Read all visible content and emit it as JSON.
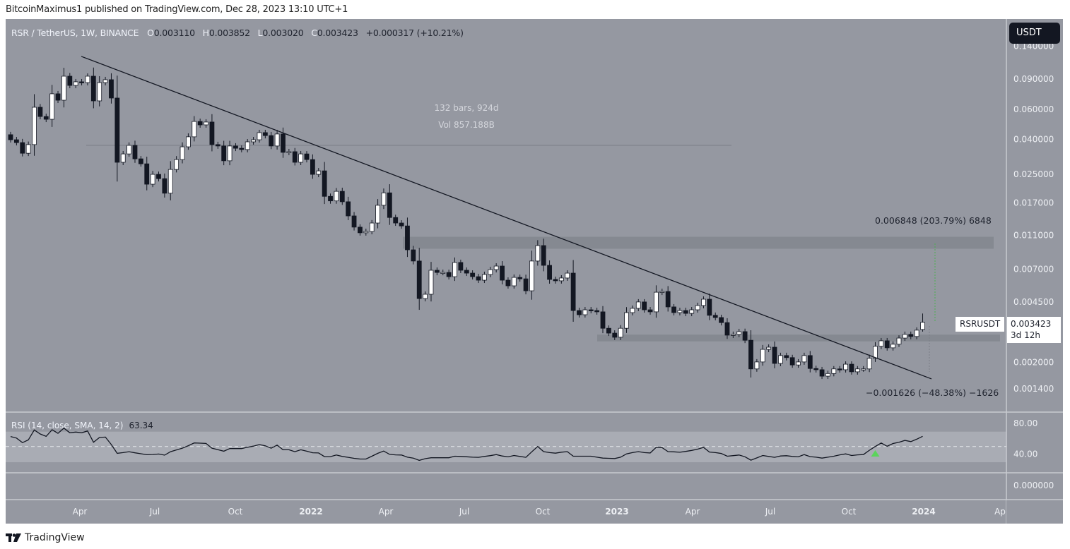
{
  "publisher": "BitcoinMaximus1 published on TradingView.com, Dec 28, 2023 13:10 UTC+1",
  "legend": {
    "symbol": "RSR / TetherUS, 1W, BINANCE",
    "o_label": "O",
    "o": "0.003110",
    "h_label": "H",
    "h": "0.003852",
    "l_label": "L",
    "l": "0.003020",
    "c_label": "C",
    "c": "0.003423",
    "change": "+0.000317 (+10.21%)"
  },
  "currency_button": "USDT",
  "price_axis": [
    "0.140000",
    "0.090000",
    "0.060000",
    "0.040000",
    "0.025000",
    "0.017000",
    "0.011000",
    "0.007000",
    "0.004500",
    "0.002000",
    "0.001400"
  ],
  "rsi_axis": [
    "80.00",
    "40.00"
  ],
  "lower_pane_axis": "0.000000",
  "time_axis": [
    {
      "label": "Apr",
      "year": false
    },
    {
      "label": "Jul",
      "year": false
    },
    {
      "label": "Oct",
      "year": false
    },
    {
      "label": "2022",
      "year": true
    },
    {
      "label": "Apr",
      "year": false
    },
    {
      "label": "Jul",
      "year": false
    },
    {
      "label": "Oct",
      "year": false
    },
    {
      "label": "2023",
      "year": true
    },
    {
      "label": "Apr",
      "year": false
    },
    {
      "label": "Jul",
      "year": false
    },
    {
      "label": "Oct",
      "year": false
    },
    {
      "label": "2024",
      "year": true
    },
    {
      "label": "Ap",
      "year": false
    }
  ],
  "measure": {
    "bars": "132 bars, 924d",
    "volume": "Vol 857.188B"
  },
  "range_up_label": "0.006848 (203.79%) 6848",
  "range_down_label": "−0.001626 (−48.38%) −1626",
  "symbol_tag": "RSRUSDT",
  "last_price": "0.003423",
  "countdown": "3d 12h",
  "rsi_legend": {
    "label": "RSI (14, close, SMA, 14, 2)",
    "value": "63.34"
  },
  "footer": {
    "logo_icon": "tradingview-logo-icon",
    "label": "TradingView"
  },
  "colors": {
    "background": "#9598a1",
    "up_candle": "#ffffff",
    "down_candle": "#131722",
    "zone": "#83868e",
    "rsi_band": "#a9acb4",
    "signal": "#5bd45b",
    "range_up_line": "#4caf50"
  },
  "chart_data": {
    "type": "candlestick",
    "interval": "1W",
    "y_scale": "log",
    "first_open": 0.0426,
    "closes": [
      0.0398,
      0.0383,
      0.0332,
      0.0373,
      0.0616,
      0.0544,
      0.0524,
      0.0738,
      0.0677,
      0.0935,
      0.0826,
      0.0867,
      0.0858,
      0.0935,
      0.0671,
      0.0858,
      0.0892,
      0.0697,
      0.0294,
      0.0329,
      0.0369,
      0.0308,
      0.0288,
      0.0219,
      0.025,
      0.0236,
      0.0194,
      0.0267,
      0.0305,
      0.0362,
      0.0414,
      0.0509,
      0.0486,
      0.0505,
      0.0373,
      0.0366,
      0.03,
      0.0366,
      0.0355,
      0.0349,
      0.0387,
      0.0398,
      0.0438,
      0.0421,
      0.0366,
      0.043,
      0.0336,
      0.0339,
      0.0294,
      0.0329,
      0.0305,
      0.025,
      0.0262,
      0.0186,
      0.0175,
      0.0199,
      0.0173,
      0.0143,
      0.0123,
      0.0114,
      0.0116,
      0.013,
      0.0165,
      0.0195,
      0.014,
      0.013,
      0.0125,
      0.00907,
      0.0078,
      0.00471,
      0.00499,
      0.00689,
      0.00669,
      0.00669,
      0.00632,
      0.00765,
      0.00689,
      0.00663,
      0.00632,
      0.00603,
      0.00651,
      0.00695,
      0.00729,
      0.00603,
      0.00559,
      0.00626,
      0.00614,
      0.00523,
      0.0078,
      0.0096,
      0.00736,
      0.00609,
      0.00598,
      0.00621,
      0.00663,
      0.00401,
      0.00379,
      0.00405,
      0.00401,
      0.00394,
      0.00316,
      0.00296,
      0.0028,
      0.00316,
      0.0039,
      0.00413,
      0.0045,
      0.00405,
      0.00394,
      0.00513,
      0.00518,
      0.00421,
      0.0039,
      0.00401,
      0.00386,
      0.00405,
      0.00429,
      0.00467,
      0.00376,
      0.00365,
      0.00341,
      0.00288,
      0.00291,
      0.00302,
      0.00269,
      0.00183,
      0.00201,
      0.00238,
      0.00245,
      0.00197,
      0.00219,
      0.00213,
      0.00193,
      0.00201,
      0.00219,
      0.00184,
      0.00181,
      0.00166,
      0.00172,
      0.00183,
      0.00181,
      0.00195,
      0.00176,
      0.00183,
      0.00183,
      0.00211,
      0.00248,
      0.00267,
      0.00243,
      0.00255,
      0.00277,
      0.00291,
      0.00283,
      0.00308,
      0.003423
    ],
    "last_bar": {
      "open": 0.00311,
      "high": 0.003852,
      "low": 0.00302,
      "close": 0.003423
    },
    "drawings": {
      "trendline": [
        0.122,
        0.0016
      ],
      "measure_level": 0.0369,
      "zones": [
        [
          0.0092,
          0.0108
        ],
        [
          0.00265,
          0.0029
        ]
      ]
    },
    "rsi": {
      "period": 14,
      "band": [
        30,
        70
      ],
      "mid": 50,
      "values": [
        63,
        61,
        55,
        58.6,
        71.6,
        66.3,
        63.2,
        71.9,
        67.2,
        74,
        67.9,
        68.8,
        67.9,
        70.3,
        55.5,
        61.7,
        62.3,
        52.5,
        41,
        42,
        43.2,
        41.7,
        40.5,
        39.2,
        39.5,
        40.1,
        38.6,
        43.2,
        45.5,
        47.8,
        51,
        54.6,
        54.3,
        54,
        47.8,
        45.8,
        43.8,
        47.2,
        47.2,
        47.2,
        49,
        50.5,
        52.5,
        50.9,
        47.8,
        51.8,
        45.7,
        45.7,
        43.2,
        45.7,
        43.8,
        41.8,
        41.5,
        36.7,
        36.7,
        38.8,
        37,
        35.8,
        34.5,
        33.6,
        33.6,
        37.3,
        41,
        44,
        39.7,
        39,
        38.8,
        36,
        34.8,
        31.8,
        34,
        35.2,
        35.2,
        35.2,
        35.2,
        37.3,
        37,
        36.5,
        36,
        35.8,
        37,
        38,
        39.4,
        37.5,
        36.4,
        38.2,
        37,
        35.8,
        43,
        50,
        43.3,
        42,
        41.2,
        42.5,
        43.3,
        37.3,
        37.3,
        37.3,
        37.3,
        36,
        34.8,
        34.5,
        34.2,
        36,
        40.3,
        42,
        43.3,
        42,
        41.5,
        48.8,
        48.5,
        43.3,
        43,
        42.4,
        43.5,
        44.8,
        46.5,
        48.8,
        42.7,
        42,
        40.9,
        37.3,
        38,
        38.8,
        36.5,
        32.1,
        35,
        38.2,
        37,
        35.8,
        37.5,
        37.9,
        37,
        36.4,
        39.4,
        36.7,
        36,
        34.8,
        36,
        37.3,
        39,
        40.3,
        38.2,
        39,
        39.4,
        45,
        50,
        54.5,
        50.3,
        53.9,
        55.5,
        57.9,
        56.4,
        59.5,
        63.34
      ]
    }
  }
}
